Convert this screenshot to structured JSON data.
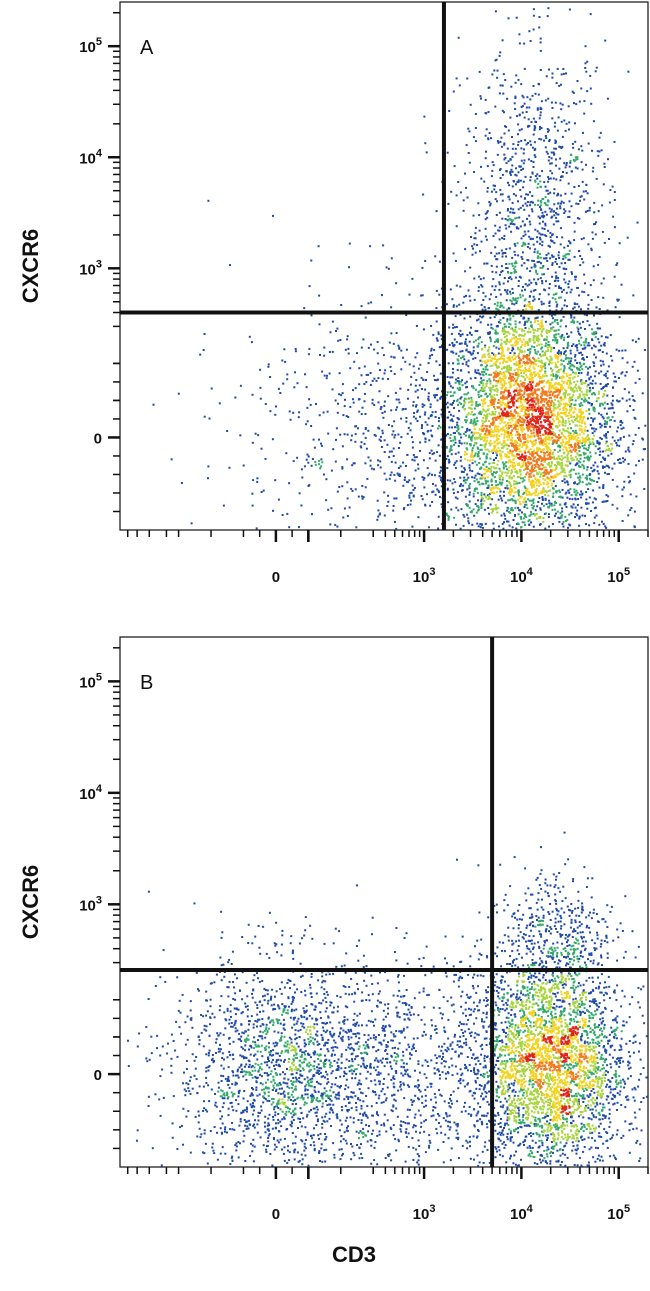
{
  "chart_data": [
    {
      "type": "scatter",
      "panel_label": "A",
      "xlabel": "",
      "ylabel": "CXCR6",
      "xscale": "biexponential",
      "yscale": "biexponential",
      "x_tick_labels": [
        {
          "base": "0",
          "exp": ""
        },
        {
          "base": "10",
          "exp": "3"
        },
        {
          "base": "10",
          "exp": "4"
        },
        {
          "base": "10",
          "exp": "5"
        }
      ],
      "y_tick_labels": [
        {
          "base": "0",
          "exp": ""
        },
        {
          "base": "10",
          "exp": "3"
        },
        {
          "base": "10",
          "exp": "4"
        },
        {
          "base": "10",
          "exp": "5"
        }
      ],
      "gate": {
        "x": 1600,
        "y": 400
      },
      "populations": [
        {
          "name": "",
          "cx": 12000,
          "cy": 40,
          "sx": 0.45,
          "sy": 0.55,
          "n": 4200
        },
        {
          "name": "",
          "cx": 14000,
          "cy": 3000,
          "sx": 0.38,
          "sy": 0.75,
          "n": 1100
        },
        {
          "name": "",
          "cx": 600,
          "cy": 20,
          "sx": 0.85,
          "sy": 0.65,
          "n": 900
        }
      ]
    },
    {
      "type": "scatter",
      "panel_label": "B",
      "xlabel": "CD3",
      "ylabel": "CXCR6",
      "xscale": "biexponential",
      "yscale": "biexponential",
      "x_tick_labels": [
        {
          "base": "0",
          "exp": ""
        },
        {
          "base": "10",
          "exp": "3"
        },
        {
          "base": "10",
          "exp": "4"
        },
        {
          "base": "10",
          "exp": "5"
        }
      ],
      "y_tick_labels": [
        {
          "base": "0",
          "exp": ""
        },
        {
          "base": "10",
          "exp": "3"
        },
        {
          "base": "10",
          "exp": "4"
        },
        {
          "base": "10",
          "exp": "5"
        }
      ],
      "gate": {
        "x": 5000,
        "y": 280
      },
      "populations": [
        {
          "name": "",
          "cx": 20000,
          "cy": 30,
          "sx": 0.38,
          "sy": 0.5,
          "n": 3200
        },
        {
          "name": "",
          "cx": 30,
          "cy": 15,
          "sx": 0.6,
          "sy": 0.5,
          "n": 1700
        },
        {
          "name": "",
          "cx": 800,
          "cy": 10,
          "sx": 0.8,
          "sy": 0.5,
          "n": 1000
        },
        {
          "name": "",
          "cx": 22000,
          "cy": 600,
          "sx": 0.3,
          "sy": 0.3,
          "n": 350
        }
      ]
    }
  ]
}
